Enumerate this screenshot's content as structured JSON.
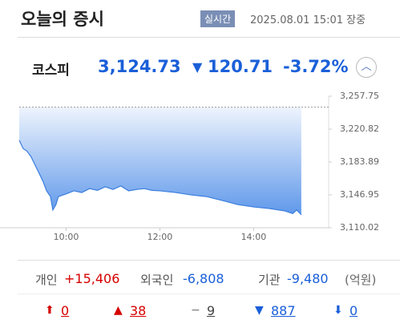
{
  "header": {
    "title": "오늘의 증시",
    "badge": "실시간",
    "timestamp": "2025.08.01 15:01 장중"
  },
  "index": {
    "name": "코스피",
    "price": "3,124.73",
    "change": "120.71",
    "change_rate": "-3.72%"
  },
  "chart_data": {
    "type": "line",
    "color": "#3b7ddd",
    "x": [
      540,
      545,
      550,
      555,
      560,
      565,
      570,
      575,
      580,
      583,
      587,
      590,
      600,
      610,
      620,
      630,
      640,
      650,
      660,
      670,
      680,
      690,
      700,
      710,
      720,
      740,
      760,
      780,
      800,
      820,
      840,
      860,
      880,
      890,
      895,
      901
    ],
    "values": [
      3208.2,
      3199,
      3196,
      3190,
      3181,
      3172,
      3163,
      3151.5,
      3145,
      3130,
      3136,
      3145,
      3148,
      3151.5,
      3149.6,
      3154,
      3152,
      3156,
      3153,
      3157,
      3151.5,
      3153,
      3154,
      3152,
      3151.5,
      3149.6,
      3146.9,
      3145,
      3140.6,
      3136,
      3133.4,
      3131.6,
      3128.9,
      3126,
      3130,
      3124.73
    ],
    "reference_line": 3245.44,
    "xlim": [
      540,
      936
    ],
    "xticks": [
      {
        "value": 600,
        "label": "10:00"
      },
      {
        "value": 720,
        "label": "12:00"
      },
      {
        "value": 840,
        "label": "14:00"
      }
    ],
    "ylim": [
      3110.02,
      3257.75
    ],
    "yticks": [
      {
        "value": 3257.75,
        "label": "3,257.75"
      },
      {
        "value": 3220.82,
        "label": "3,220.82"
      },
      {
        "value": 3183.89,
        "label": "3,183.89"
      },
      {
        "value": 3146.95,
        "label": "3,146.95"
      },
      {
        "value": 3110.02,
        "label": "3,110.02"
      }
    ]
  },
  "investors": {
    "unit": "(억원)",
    "items": [
      {
        "label": "개인",
        "value": "+15,406"
      },
      {
        "label": "외국인",
        "value": "-6,808"
      },
      {
        "label": "기관",
        "value": "-9,480"
      }
    ]
  },
  "breadth": [
    "0",
    "38",
    "9",
    "887",
    "0"
  ]
}
